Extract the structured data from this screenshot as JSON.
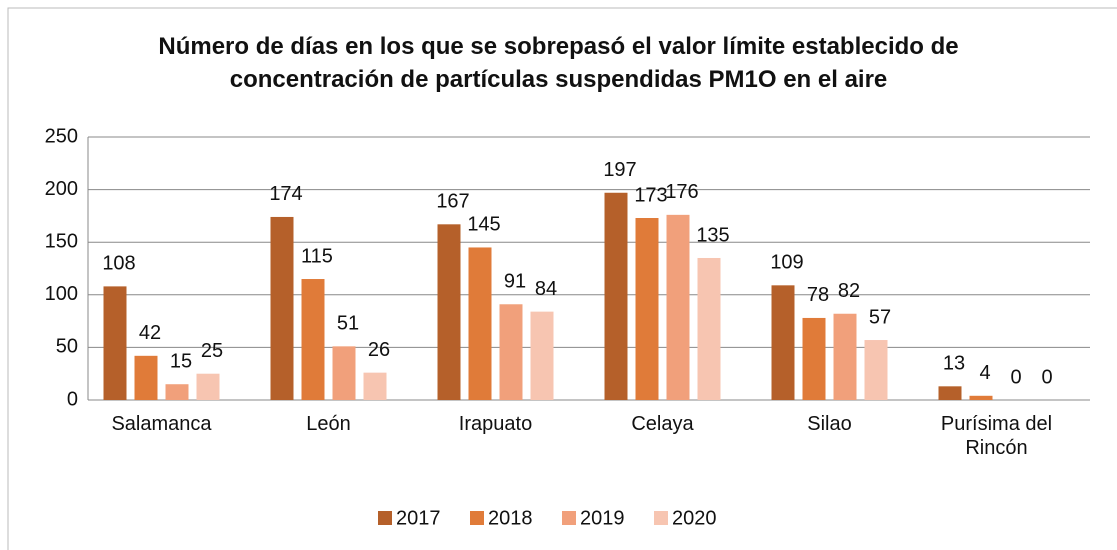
{
  "chart_data": {
    "type": "bar",
    "title": "Número de días en los que se sobrepasó el valor límite establecido de concentración de partículas suspendidas PM1O en el aire",
    "categories": [
      "Salamanca",
      "León",
      "Irapuato",
      "Celaya",
      "Silao",
      "Purísima del Rincón"
    ],
    "series": [
      {
        "name": "2017",
        "color": "#b5602a",
        "values": [
          108,
          174,
          167,
          197,
          109,
          13
        ]
      },
      {
        "name": "2018",
        "color": "#e07b39",
        "values": [
          42,
          115,
          145,
          173,
          78,
          4
        ]
      },
      {
        "name": "2019",
        "color": "#f1a07b",
        "values": [
          15,
          51,
          91,
          176,
          82,
          0
        ]
      },
      {
        "name": "2020",
        "color": "#f7c5b1",
        "values": [
          25,
          26,
          84,
          135,
          57,
          0
        ]
      }
    ],
    "ylim": [
      0,
      250
    ],
    "yticks": [
      0,
      50,
      100,
      150,
      200,
      250
    ],
    "grid": true,
    "legend": "bottom"
  }
}
